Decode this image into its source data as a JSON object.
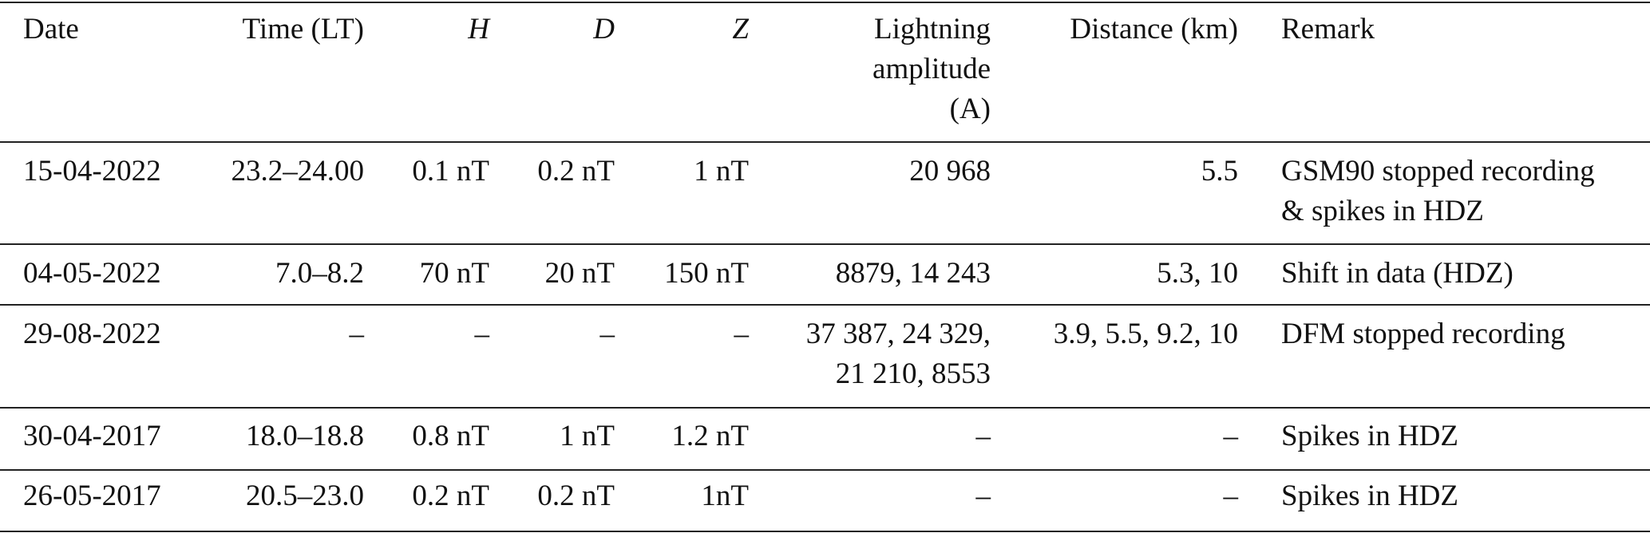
{
  "table": {
    "header": [
      "Date",
      "Time (LT)",
      "H",
      "D",
      "Z",
      [
        "Lightning",
        "amplitude",
        "(A)"
      ],
      "Distance (km)",
      "Remark"
    ],
    "rows": [
      [
        "15-04-2022",
        "23.2–24.00",
        "0.1 nT",
        "0.2 nT",
        "1 nT",
        "20 968",
        "5.5",
        [
          "GSM90 stopped recording",
          "& spikes in HDZ"
        ]
      ],
      [
        "04-05-2022",
        "7.0–8.2",
        "70 nT",
        "20 nT",
        "150 nT",
        "8879, 14 243",
        "5.3, 10",
        "Shift in data (HDZ)"
      ],
      [
        "29-08-2022",
        "–",
        "–",
        "–",
        "–",
        [
          "37 387, 24 329,",
          "21 210, 8553"
        ],
        "3.9, 5.5, 9.2, 10",
        "DFM stopped recording"
      ],
      [
        "30-04-2017",
        "18.0–18.8",
        "0.8 nT",
        "1 nT",
        "1.2 nT",
        "–",
        "–",
        "Spikes in HDZ"
      ],
      [
        "26-05-2017",
        "20.5–23.0",
        "0.2 nT",
        "0.2 nT",
        "1nT",
        "–",
        "–",
        "Spikes in HDZ"
      ]
    ]
  }
}
